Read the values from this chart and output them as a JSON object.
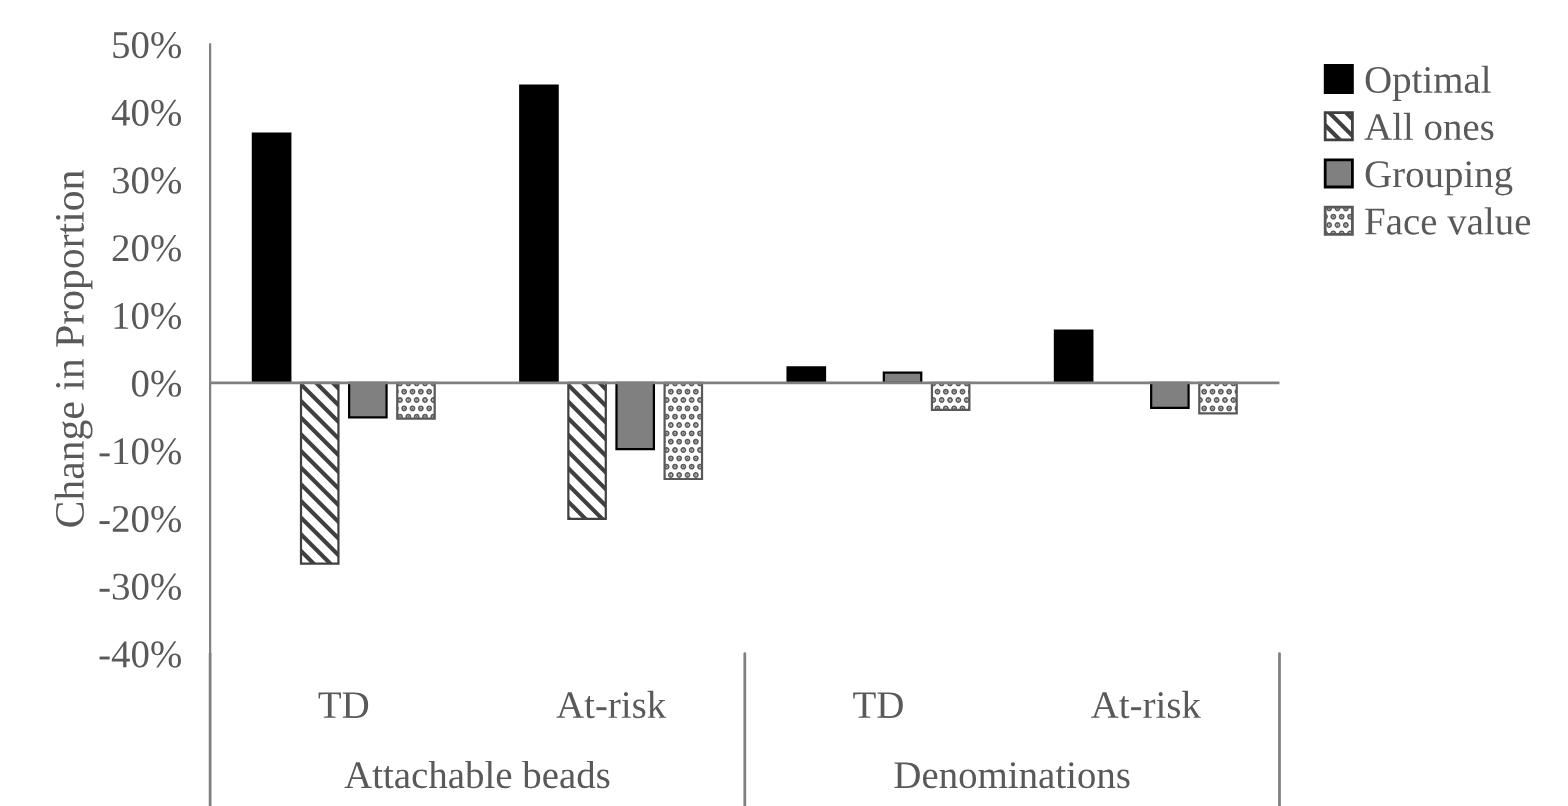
{
  "chart_data": {
    "type": "bar",
    "ylabel": "Change in Proportion",
    "categories": [
      "TD",
      "At-risk",
      "TD",
      "At-risk"
    ],
    "series": [
      {
        "name": "Optimal",
        "color": "#000000",
        "values": [
          36.8,
          43.9,
          2.3,
          7.7
        ]
      },
      {
        "name": "All ones",
        "color": "#404040",
        "values": [
          -26.7,
          -20.1,
          null,
          null
        ]
      },
      {
        "name": "Grouping",
        "color": "#808080",
        "values": [
          -5.1,
          -9.8,
          1.5,
          -3.7
        ]
      },
      {
        "name": "Face value",
        "color": "#595959",
        "values": [
          -5.3,
          -14.2,
          -4.0,
          -4.5
        ]
      }
    ],
    "ylim": [
      -40,
      50
    ],
    "yticks": [
      {
        "value": -40,
        "label": "-40%"
      },
      {
        "value": -30,
        "label": "-30%"
      },
      {
        "value": -20,
        "label": "-20%"
      },
      {
        "value": -10,
        "label": "-10%"
      },
      {
        "value": 0,
        "label": "0%"
      },
      {
        "value": 10,
        "label": "10%"
      },
      {
        "value": 20,
        "label": "20%"
      },
      {
        "value": 30,
        "label": "30%"
      },
      {
        "value": 40,
        "label": "40%"
      },
      {
        "value": 50,
        "label": "50%"
      }
    ],
    "annotations": [
      "Attachable beads",
      "Denominations"
    ],
    "legend": "right"
  }
}
